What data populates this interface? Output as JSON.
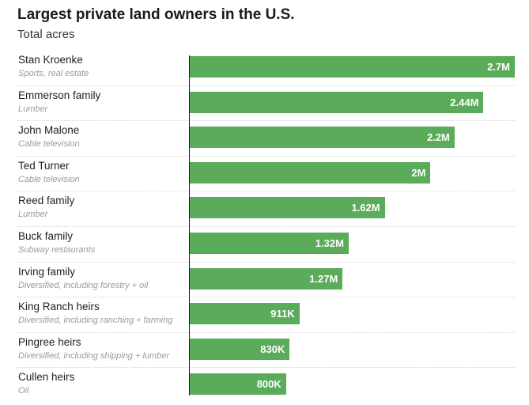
{
  "chart_data": {
    "type": "bar",
    "orientation": "horizontal",
    "title": "Largest private land owners in the U.S.",
    "subtitle": "Total acres",
    "bar_color": "#5aac5a",
    "xlim": [
      0,
      2700000
    ],
    "categories": [
      {
        "name": "Stan Kroenke",
        "description": "Sports, real estate",
        "value": 2700000,
        "label": "2.7M"
      },
      {
        "name": "Emmerson family",
        "description": "Lumber",
        "value": 2440000,
        "label": "2.44M"
      },
      {
        "name": "John Malone",
        "description": "Cable television",
        "value": 2200000,
        "label": "2.2M"
      },
      {
        "name": "Ted Turner",
        "description": "Cable television",
        "value": 2000000,
        "label": "2M"
      },
      {
        "name": "Reed family",
        "description": "Lumber",
        "value": 1620000,
        "label": "1.62M"
      },
      {
        "name": "Buck family",
        "description": "Subway restaurants",
        "value": 1320000,
        "label": "1.32M"
      },
      {
        "name": "Irving family",
        "description": "Diversified, including forestry + oil",
        "value": 1270000,
        "label": "1.27M"
      },
      {
        "name": "King Ranch heirs",
        "description": "Diversified, including ranching + farming",
        "value": 911000,
        "label": "911K"
      },
      {
        "name": "Pingree heirs",
        "description": "Diversified, including shipping + lumber",
        "value": 830000,
        "label": "830K"
      },
      {
        "name": "Cullen heirs",
        "description": "Oil",
        "value": 800000,
        "label": "800K"
      }
    ]
  }
}
